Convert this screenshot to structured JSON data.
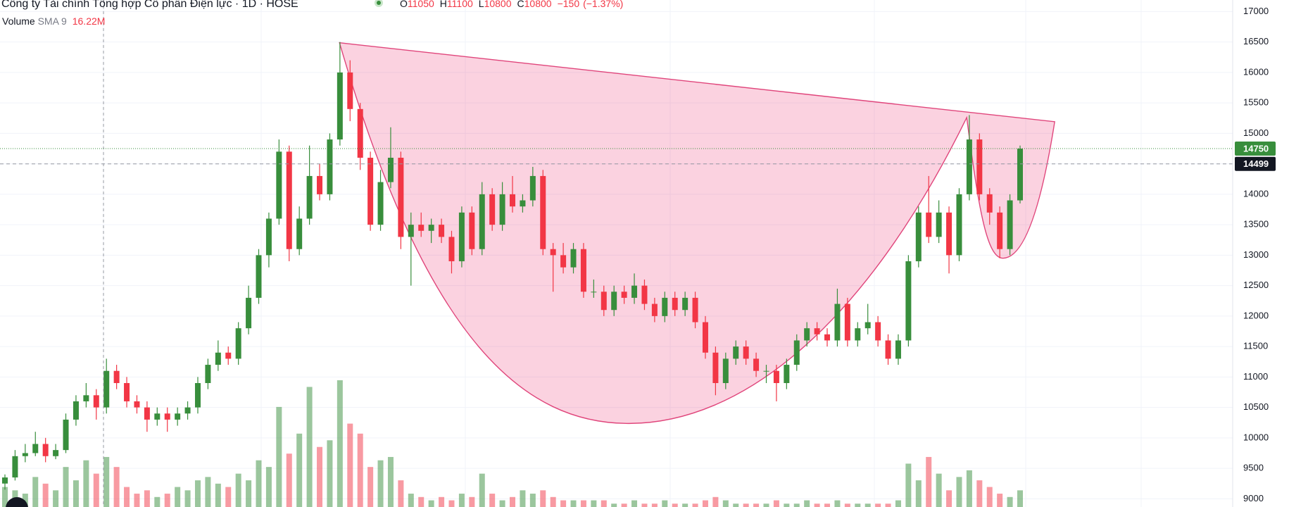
{
  "chart_data": {
    "type": "candlestick",
    "title": "Công ty Tài chính Tổng hợp Cổ phần Điện lực · 1D · HOSE",
    "ohlc_legend": {
      "items": [
        {
          "label": "O",
          "value": 11050
        },
        {
          "label": "H",
          "value": 11100
        },
        {
          "label": "L",
          "value": 10800
        },
        {
          "label": "C",
          "value": 10800
        }
      ],
      "change": {
        "value": -150,
        "label": "−150"
      },
      "change_pct": {
        "value": -1.37,
        "label": "(−1.37%)"
      }
    },
    "volume_legend": {
      "name": "Volume",
      "indicator": "SMA 9",
      "value": {
        "value": 16.22,
        "label": "16.22M"
      }
    },
    "ylim": [
      8865,
      17190
    ],
    "yticks": [
      9000,
      9500,
      10000,
      10500,
      11000,
      11500,
      12000,
      12500,
      13000,
      13500,
      14000,
      14500,
      15000,
      15500,
      16000,
      16500,
      17000
    ],
    "last_price": 14750,
    "crosshair_price": 14499,
    "up_color": "#388e3c",
    "down_color": "#f23645",
    "candles": [
      [
        9250,
        9400,
        9150,
        9350
      ],
      [
        9350,
        9800,
        9300,
        9700
      ],
      [
        9700,
        9900,
        9600,
        9750
      ],
      [
        9750,
        10100,
        9700,
        9900
      ],
      [
        9900,
        10000,
        9600,
        9700
      ],
      [
        9700,
        9900,
        9650,
        9800
      ],
      [
        9800,
        10400,
        9750,
        10300
      ],
      [
        10300,
        10700,
        10200,
        10600
      ],
      [
        10600,
        10900,
        10500,
        10700
      ],
      [
        10700,
        10800,
        10300,
        10500
      ],
      [
        10500,
        11300,
        10400,
        11100
      ],
      [
        11100,
        11200,
        10800,
        10900
      ],
      [
        10900,
        11000,
        10500,
        10600
      ],
      [
        10600,
        10700,
        10400,
        10500
      ],
      [
        10500,
        10600,
        10100,
        10300
      ],
      [
        10300,
        10500,
        10200,
        10400
      ],
      [
        10400,
        10500,
        10100,
        10300
      ],
      [
        10300,
        10500,
        10200,
        10400
      ],
      [
        10400,
        10600,
        10300,
        10500
      ],
      [
        10500,
        11000,
        10400,
        10900
      ],
      [
        10900,
        11300,
        10800,
        11200
      ],
      [
        11200,
        11600,
        11100,
        11400
      ],
      [
        11400,
        11500,
        11200,
        11300
      ],
      [
        11300,
        11900,
        11200,
        11800
      ],
      [
        11800,
        12500,
        11700,
        12300
      ],
      [
        12300,
        13100,
        12200,
        13000
      ],
      [
        13000,
        13700,
        12800,
        13600
      ],
      [
        13600,
        14900,
        13500,
        14700
      ],
      [
        14700,
        14800,
        12900,
        13100
      ],
      [
        13100,
        13800,
        13000,
        13600
      ],
      [
        13600,
        14800,
        13500,
        14300
      ],
      [
        14300,
        14500,
        13900,
        14000
      ],
      [
        14000,
        15000,
        13900,
        14900
      ],
      [
        14900,
        16500,
        14800,
        16000
      ],
      [
        16000,
        16200,
        15200,
        15400
      ],
      [
        15400,
        15500,
        14400,
        14600
      ],
      [
        14600,
        14700,
        13400,
        13500
      ],
      [
        13500,
        14400,
        13400,
        14200
      ],
      [
        14200,
        15100,
        14100,
        14600
      ],
      [
        14600,
        14700,
        13100,
        13300
      ],
      [
        13300,
        13700,
        12500,
        13500
      ],
      [
        13500,
        13700,
        13300,
        13400
      ],
      [
        13400,
        13600,
        13200,
        13500
      ],
      [
        13500,
        13600,
        13200,
        13300
      ],
      [
        13300,
        13400,
        12700,
        12900
      ],
      [
        12900,
        13800,
        12800,
        13700
      ],
      [
        13700,
        13800,
        13000,
        13100
      ],
      [
        13100,
        14200,
        13000,
        14000
      ],
      [
        14000,
        14100,
        13400,
        13500
      ],
      [
        13500,
        14200,
        13400,
        14000
      ],
      [
        14000,
        14300,
        13700,
        13800
      ],
      [
        13800,
        14000,
        13700,
        13900
      ],
      [
        13900,
        14450,
        13800,
        14300
      ],
      [
        14300,
        14400,
        13000,
        13100
      ],
      [
        13100,
        13200,
        12400,
        13000
      ],
      [
        13000,
        13200,
        12700,
        12800
      ],
      [
        12800,
        13200,
        12700,
        13100
      ],
      [
        13100,
        13200,
        12300,
        12400
      ],
      [
        12400,
        12600,
        12300,
        12400
      ],
      [
        12400,
        12500,
        12000,
        12100
      ],
      [
        12100,
        12500,
        12000,
        12400
      ],
      [
        12400,
        12500,
        12200,
        12300
      ],
      [
        12300,
        12700,
        12200,
        12500
      ],
      [
        12500,
        12600,
        12100,
        12200
      ],
      [
        12200,
        12300,
        11900,
        12000
      ],
      [
        12000,
        12400,
        11900,
        12300
      ],
      [
        12300,
        12400,
        12000,
        12100
      ],
      [
        12100,
        12400,
        12000,
        12300
      ],
      [
        12300,
        12400,
        11800,
        11900
      ],
      [
        11900,
        12000,
        11300,
        11400
      ],
      [
        11400,
        11500,
        10700,
        10900
      ],
      [
        10900,
        11400,
        10800,
        11300
      ],
      [
        11300,
        11600,
        11200,
        11500
      ],
      [
        11500,
        11600,
        11200,
        11300
      ],
      [
        11300,
        11400,
        11000,
        11100
      ],
      [
        11100,
        11200,
        10900,
        11100
      ],
      [
        11100,
        11200,
        10600,
        10900
      ],
      [
        10900,
        11300,
        10800,
        11200
      ],
      [
        11200,
        11700,
        11100,
        11600
      ],
      [
        11600,
        11900,
        11500,
        11800
      ],
      [
        11800,
        11900,
        11600,
        11700
      ],
      [
        11700,
        11800,
        11500,
        11600
      ],
      [
        11600,
        12450,
        11500,
        12200
      ],
      [
        12200,
        12300,
        11500,
        11600
      ],
      [
        11600,
        11900,
        11500,
        11800
      ],
      [
        11800,
        12200,
        11700,
        11900
      ],
      [
        11900,
        12000,
        11500,
        11600
      ],
      [
        11600,
        11700,
        11200,
        11300
      ],
      [
        11300,
        11700,
        11200,
        11600
      ],
      [
        11600,
        13000,
        11500,
        12900
      ],
      [
        12900,
        13800,
        12800,
        13700
      ],
      [
        13700,
        14300,
        13200,
        13300
      ],
      [
        13300,
        13900,
        13200,
        13700
      ],
      [
        13700,
        13800,
        12700,
        13000
      ],
      [
        13000,
        14100,
        12900,
        14000
      ],
      [
        14000,
        15300,
        13900,
        14900
      ],
      [
        14900,
        15000,
        13900,
        14000
      ],
      [
        14000,
        14100,
        13500,
        13700
      ],
      [
        13700,
        13800,
        12950,
        13100
      ],
      [
        13100,
        14000,
        13000,
        13900
      ],
      [
        13900,
        14800,
        13850,
        14750
      ]
    ],
    "volumes": [
      6,
      5,
      4,
      9,
      7,
      5,
      12,
      8,
      14,
      10,
      15,
      12,
      6,
      4,
      5,
      3,
      4,
      6,
      5,
      8,
      9,
      7,
      6,
      10,
      8,
      14,
      12,
      30,
      16,
      22,
      36,
      18,
      20,
      38,
      25,
      22,
      12,
      14,
      15,
      8,
      4,
      3,
      2,
      3,
      2,
      4,
      3,
      10,
      4,
      2,
      3,
      5,
      4,
      5,
      3,
      2,
      2,
      2,
      2,
      2,
      1,
      1,
      2,
      1,
      1,
      2,
      1,
      1,
      1,
      2,
      3,
      2,
      1,
      1,
      1,
      1,
      2,
      1,
      1,
      2,
      1,
      1,
      2,
      1,
      1,
      1,
      1,
      1,
      2,
      13,
      8,
      15,
      10,
      5,
      9,
      11,
      8,
      6,
      4,
      3,
      5
    ]
  }
}
